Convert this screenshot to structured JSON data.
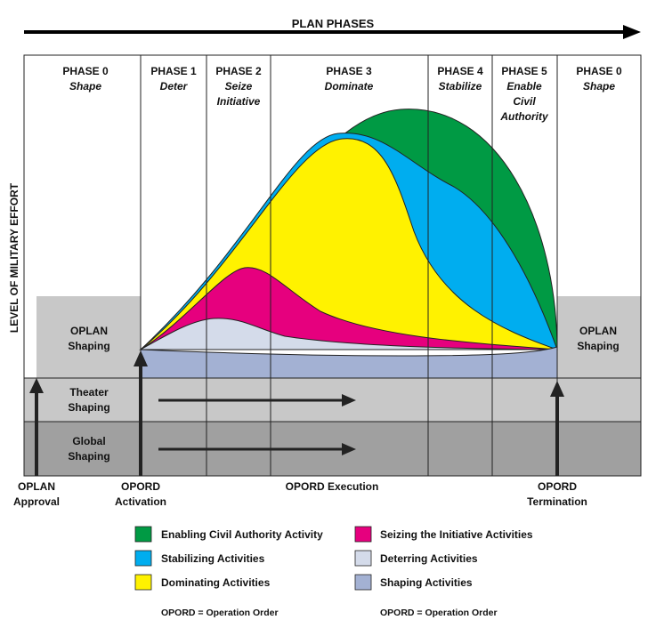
{
  "top_arrow_label": "PLAN PHASES",
  "y_axis_label": "LEVEL OF MILITARY EFFORT",
  "phases": [
    {
      "title": "PHASE 0",
      "subtitle": [
        "Shape"
      ]
    },
    {
      "title": "PHASE 1",
      "subtitle": [
        "Deter"
      ]
    },
    {
      "title": "PHASE 2",
      "subtitle": [
        "Seize",
        "Initiative"
      ]
    },
    {
      "title": "PHASE 3",
      "subtitle": [
        "Dominate"
      ]
    },
    {
      "title": "PHASE 4",
      "subtitle": [
        "Stabilize"
      ]
    },
    {
      "title": "PHASE 5",
      "subtitle": [
        "Enable",
        "Civil",
        "Authority"
      ]
    },
    {
      "title": "PHASE 0",
      "subtitle": [
        "Shape"
      ]
    }
  ],
  "bands": {
    "oplan_left": [
      "OPLAN",
      "Shaping"
    ],
    "oplan_right": [
      "OPLAN",
      "Shaping"
    ],
    "theater": [
      "Theater",
      "Shaping"
    ],
    "global": [
      "Global",
      "Shaping"
    ]
  },
  "milestones": {
    "oplan_approval": [
      "OPLAN",
      "Approval"
    ],
    "opord_activation": [
      "OPORD",
      "Activation"
    ],
    "opord_execution": [
      "OPORD Execution"
    ],
    "opord_termination": [
      "OPORD",
      "Termination"
    ]
  },
  "legend": [
    {
      "label": "Enabling Civil Authority Activity",
      "color": "#009a44"
    },
    {
      "label": "Seizing the Initiative Activities",
      "color": "#e6007e"
    },
    {
      "label": "Stabilizing Activities",
      "color": "#00adef"
    },
    {
      "label": "Deterring Activities",
      "color": "#d4dbea"
    },
    {
      "label": "Dominating Activities",
      "color": "#fff200"
    },
    {
      "label": "Shaping Activities",
      "color": "#a3b1d3"
    }
  ],
  "footnotes": [
    "OPORD = Operation Order",
    "OPORD = Operation Order"
  ],
  "colors": {
    "band_light": "#c8c8c8",
    "band_dark": "#a0a0a0",
    "green": "#009a44",
    "blue": "#00adef",
    "yellow": "#fff200",
    "magenta": "#e6007e",
    "deter": "#d4dbea",
    "shaping": "#a3b1d3"
  }
}
